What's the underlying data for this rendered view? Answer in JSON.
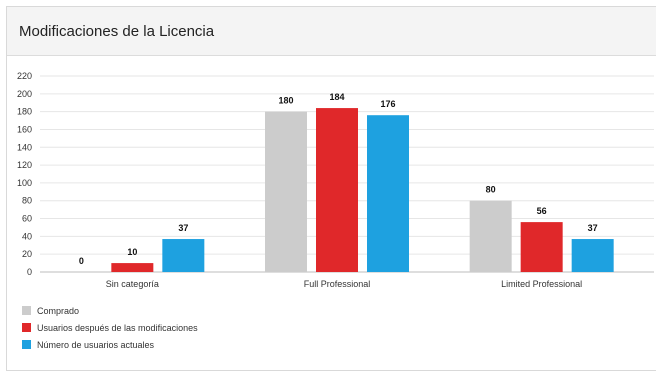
{
  "panel": {
    "title": "Modificaciones de la Licencia"
  },
  "chart_data": {
    "type": "bar",
    "categories": [
      "Sin categoría",
      "Full Professional",
      "Limited Professional"
    ],
    "series": [
      {
        "name": "Comprado",
        "color": "#cccccc",
        "values": [
          0,
          180,
          80
        ]
      },
      {
        "name": "Usuarios después de las modificaciones",
        "color": "#e0282a",
        "values": [
          10,
          184,
          56
        ]
      },
      {
        "name": "Número de usuarios actuales",
        "color": "#1ea1e0",
        "values": [
          37,
          176,
          37
        ]
      }
    ],
    "yticks": [
      0,
      20,
      40,
      60,
      80,
      100,
      120,
      140,
      160,
      180,
      200,
      220
    ],
    "ylim": [
      0,
      220
    ],
    "grid": true,
    "legend_position": "bottom-left",
    "data_labels": true
  }
}
